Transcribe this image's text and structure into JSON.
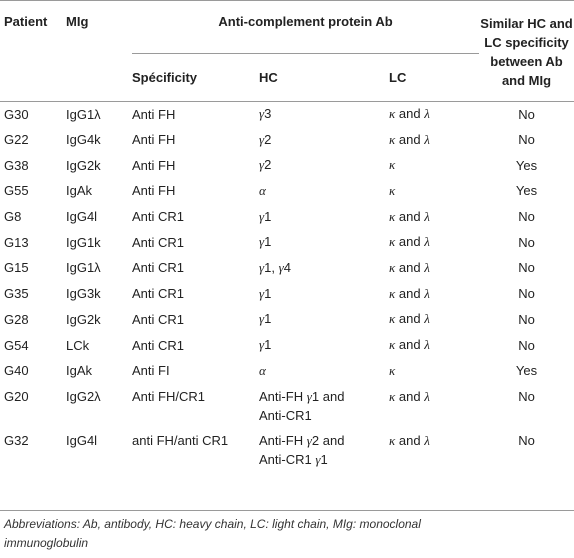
{
  "header": {
    "patient": "Patient",
    "mig": "MIg",
    "group": "Anti-complement protein Ab",
    "specificity": "Spécificity",
    "hc": "HC",
    "lc": "LC",
    "similar_l1": "Similar HC and",
    "similar_l2": "LC specificity",
    "similar_l3": "between Ab",
    "similar_l4": "and MIg"
  },
  "rows": [
    {
      "patient": "G30",
      "mig": "IgG1λ",
      "spec": "Anti FH",
      "hc": "γ3",
      "lc": "κ and λ",
      "similar": "No"
    },
    {
      "patient": "G22",
      "mig": "IgG4k",
      "spec": "Anti FH",
      "hc": "γ2",
      "lc": "κ and λ",
      "similar": "No"
    },
    {
      "patient": "G38",
      "mig": "IgG2k",
      "spec": "Anti FH",
      "hc": "γ2",
      "lc": "κ",
      "similar": "Yes"
    },
    {
      "patient": "G55",
      "mig": "IgAk",
      "spec": "Anti FH",
      "hc": "α",
      "lc": "κ",
      "similar": "Yes"
    },
    {
      "patient": "G8",
      "mig": "IgG4l",
      "spec": "Anti CR1",
      "hc": "γ1",
      "lc": "κ and λ",
      "similar": "No"
    },
    {
      "patient": "G13",
      "mig": "IgG1k",
      "spec": "Anti CR1",
      "hc": "γ1",
      "lc": "κ and λ",
      "similar": "No"
    },
    {
      "patient": "G15",
      "mig": "IgG1λ",
      "spec": "Anti CR1",
      "hc": "γ1, γ4",
      "lc": "κ and λ",
      "similar": "No"
    },
    {
      "patient": "G35",
      "mig": "IgG3k",
      "spec": "Anti CR1",
      "hc": "γ1",
      "lc": "κ and λ",
      "similar": "No"
    },
    {
      "patient": "G28",
      "mig": "IgG2k",
      "spec": "Anti CR1",
      "hc": "γ1",
      "lc": "κ and λ",
      "similar": "No"
    },
    {
      "patient": "G54",
      "mig": "LCk",
      "spec": "Anti CR1",
      "hc": "γ1",
      "lc": "κ and λ",
      "similar": "No"
    },
    {
      "patient": "G40",
      "mig": "IgAk",
      "spec": "Anti FI",
      "hc": "α",
      "lc": "κ",
      "similar": "Yes"
    },
    {
      "patient": "G20",
      "mig": "IgG2λ",
      "spec": "Anti FH/CR1",
      "hc": "Anti-FH γ1 and",
      "hc2": "Anti-CR1",
      "lc": "κ and λ",
      "similar": "No"
    },
    {
      "patient": "G32",
      "mig": "IgG4l",
      "spec": "anti FH/anti CR1",
      "hc": "Anti-FH γ2 and",
      "hc2": "Anti-CR1 γ1",
      "lc": "κ and λ",
      "similar": "No"
    }
  ],
  "footnote_l1": "Abbreviations: Ab, antibody, HC: heavy chain, LC: light chain, MIg: monoclonal",
  "footnote_l2": "immunoglobulin"
}
